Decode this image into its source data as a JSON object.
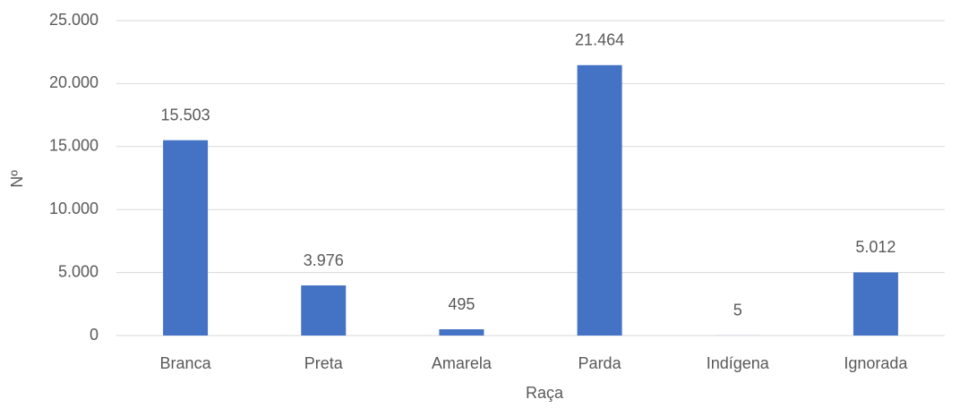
{
  "chart_data": {
    "type": "bar",
    "x_label": "Raça",
    "y_label": "Nº",
    "categories": [
      "Branca",
      "Preta",
      "Amarela",
      "Parda",
      "Indígena",
      "Ignorada"
    ],
    "values": [
      15503,
      3976,
      495,
      21464,
      5,
      5012
    ],
    "value_labels": [
      "15.503",
      "3.976",
      "495",
      "21.464",
      "5",
      "5.012"
    ],
    "color": "#4472c4",
    "ylim": [
      0,
      25000
    ],
    "yticks": [
      0,
      {
        "value": 5000,
        "label": "5.000"
      },
      {
        "value": 10000,
        "label": "10.000"
      },
      {
        "value": 15000,
        "label": "15.000"
      },
      {
        "value": 20000,
        "label": "20.000"
      },
      {
        "value": 25000,
        "label": "25.000"
      }
    ],
    "grid": true
  }
}
